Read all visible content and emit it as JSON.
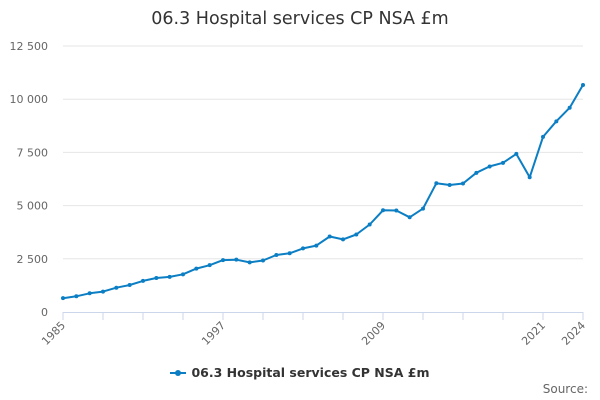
{
  "chart_data": {
    "type": "line",
    "title": "06.3 Hospital services CP NSA £m",
    "xlabel": "",
    "ylabel": "",
    "ylim": [
      0,
      12500
    ],
    "yticks": [
      "0",
      "2 500",
      "5 000",
      "7 500",
      "10 000",
      "12 500"
    ],
    "x_tick_labels": [
      "1985",
      "1997",
      "2009",
      "2021",
      "2024"
    ],
    "series": [
      {
        "name": "06.3 Hospital services CP NSA £m",
        "color": "#0b7ec4",
        "x": [
          1985,
          1986,
          1987,
          1988,
          1989,
          1990,
          1991,
          1992,
          1993,
          1994,
          1995,
          1996,
          1997,
          1998,
          1999,
          2000,
          2001,
          2002,
          2003,
          2004,
          2005,
          2006,
          2007,
          2008,
          2009,
          2010,
          2011,
          2012,
          2013,
          2014,
          2015,
          2016,
          2017,
          2018,
          2019,
          2020,
          2021,
          2022,
          2023,
          2024
        ],
        "values": [
          650,
          740,
          880,
          960,
          1140,
          1270,
          1460,
          1600,
          1650,
          1770,
          2040,
          2200,
          2440,
          2460,
          2330,
          2420,
          2680,
          2760,
          2990,
          3120,
          3550,
          3410,
          3640,
          4110,
          4780,
          4770,
          4450,
          4860,
          6050,
          5970,
          6040,
          6540,
          6840,
          7010,
          7430,
          6330,
          8230,
          8960,
          9600,
          10670
        ]
      }
    ]
  },
  "legend": {
    "label": "06.3 Hospital services CP NSA £m"
  },
  "credits": "Source:"
}
